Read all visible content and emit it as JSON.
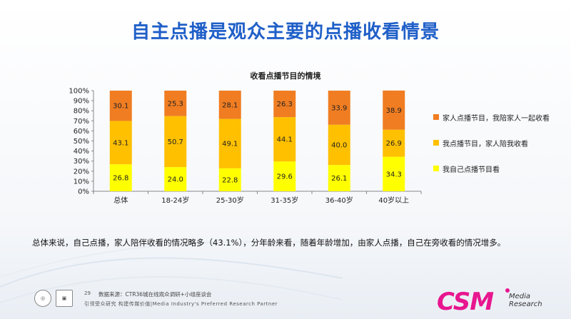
{
  "page": {
    "title": "自主点播是观众主要的点播收看情景",
    "summary": "总体来说，自己点播，家人陪伴收看的情况略多（43.1%），分年龄来看，随着年龄增加，由家人点播，自己在旁收看的情况增多。",
    "page_number": "29",
    "source": "数据来源：CTR36城在线观众调研+小组座谈会",
    "tagline": "引领受众研究  构建传媒价值|Media Industry's Preferred Research Partner",
    "logo": "CSM",
    "logo_sub_1": "Media",
    "logo_sub_2": "Research"
  },
  "colors": {
    "self": "#ffff00",
    "self_family": "#ffc000",
    "family": "#f07d22",
    "title": "#1f5fc8"
  },
  "chart_data": {
    "type": "bar",
    "stacked": true,
    "title": "收看点播节目的情境",
    "categories": [
      "总体",
      "18-24岁",
      "25-30岁",
      "31-35岁",
      "36-40岁",
      "40岁以上"
    ],
    "series": [
      {
        "name": "我自己点播节目看",
        "color": "#ffff00",
        "values": [
          26.8,
          24.0,
          22.8,
          29.6,
          26.1,
          34.3
        ]
      },
      {
        "name": "我点播节目，家人陪我收看",
        "color": "#ffc000",
        "values": [
          43.1,
          50.7,
          49.1,
          44.1,
          40.0,
          26.9
        ]
      },
      {
        "name": "家人点播节目，我陪家人一起收看",
        "color": "#f07d22",
        "values": [
          30.1,
          25.3,
          28.1,
          26.3,
          33.9,
          38.9
        ]
      }
    ],
    "value_labels": [
      [
        "26.8",
        "24.0",
        "22.8",
        "29.6",
        "26.1",
        "34.3"
      ],
      [
        "43.1",
        "50.7",
        "49.1",
        "44.1",
        "40.0",
        "26.9"
      ],
      [
        "30.1",
        "25.3",
        "28.1",
        "26.3",
        "33.9",
        "38.9"
      ]
    ],
    "y_ticks": [
      "0%",
      "10%",
      "20%",
      "30%",
      "40%",
      "50%",
      "60%",
      "70%",
      "80%",
      "90%",
      "100%"
    ],
    "ylim": [
      0,
      100
    ],
    "legend_order": [
      2,
      1,
      0
    ],
    "legend_position": "right",
    "grid": false
  }
}
